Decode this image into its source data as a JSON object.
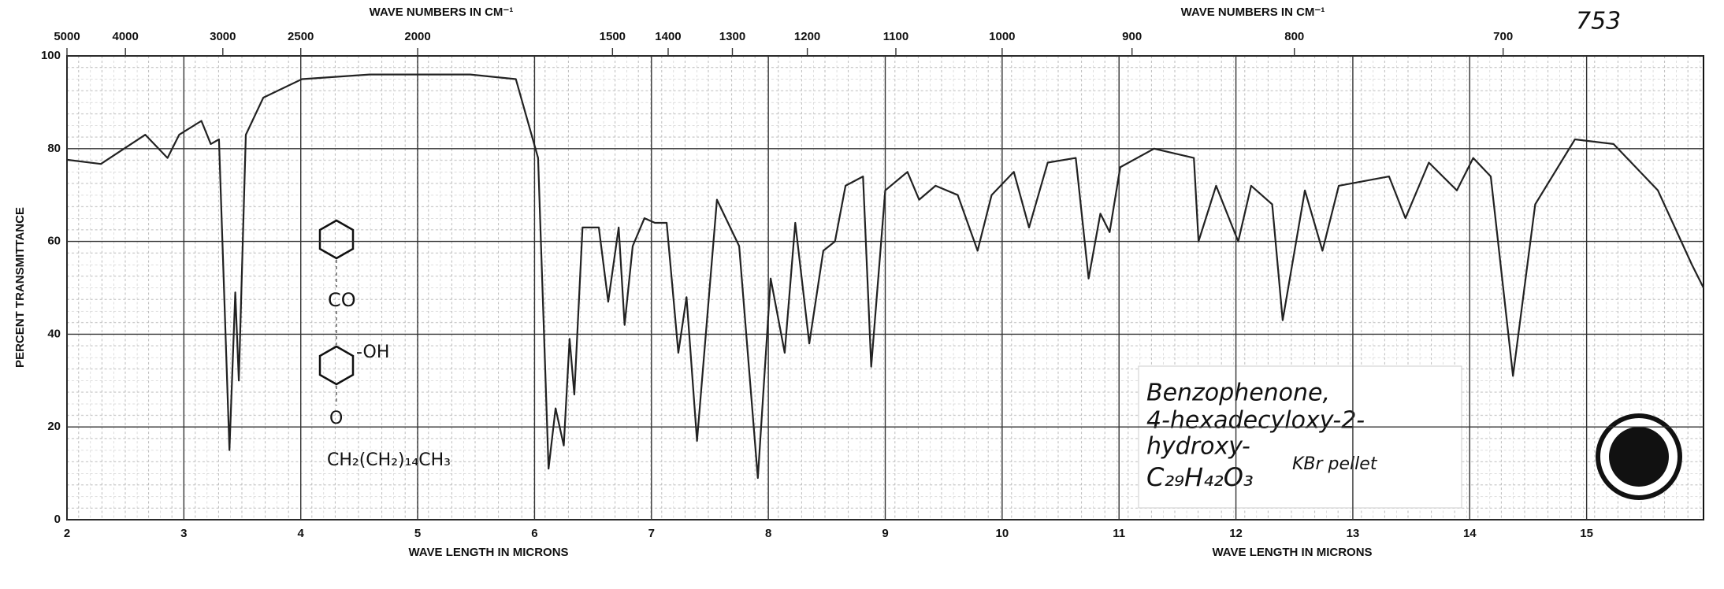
{
  "chart_data": {
    "type": "line",
    "x_label": "WAVE LENGTH IN MICRONS",
    "x2_label": "WAVE NUMBERS IN CM⁻¹",
    "y_label": "PERCENT TRANSMITTANCE",
    "xlim": [
      2,
      16
    ],
    "xticks": [
      2,
      3,
      4,
      5,
      6,
      7,
      8,
      9,
      10,
      11,
      12,
      13,
      14,
      15
    ],
    "x2ticks": [
      5000,
      4000,
      3000,
      2500,
      2000,
      1500,
      1400,
      1300,
      1200,
      1100,
      1000,
      900,
      800,
      700
    ],
    "ylim": [
      0,
      100
    ],
    "yticks": [
      0,
      20,
      40,
      60,
      80,
      100
    ],
    "grid": true,
    "color": "#222",
    "x": [
      2.0,
      2.29,
      2.67,
      2.86,
      2.96,
      3.15,
      3.23,
      3.3,
      3.39,
      3.44,
      3.47,
      3.53,
      3.68,
      4.01,
      4.59,
      5.45,
      5.84,
      6.03,
      6.12,
      6.18,
      6.25,
      6.3,
      6.34,
      6.41,
      6.55,
      6.63,
      6.72,
      6.77,
      6.84,
      6.94,
      7.03,
      7.13,
      7.23,
      7.3,
      7.39,
      7.56,
      7.75,
      7.91,
      8.02,
      8.14,
      8.23,
      8.35,
      8.47,
      8.57,
      8.66,
      8.81,
      8.88,
      9.0,
      9.19,
      9.29,
      9.43,
      9.62,
      9.79,
      9.91,
      10.1,
      10.23,
      10.39,
      10.63,
      10.74,
      10.84,
      10.92,
      11.01,
      11.3,
      11.64,
      11.68,
      11.83,
      12.02,
      12.13,
      12.31,
      12.4,
      12.59,
      12.74,
      12.88,
      13.31,
      13.45,
      13.65,
      13.89,
      14.03,
      14.18,
      14.37,
      14.56,
      14.9,
      15.23,
      15.61,
      15.9,
      16.0
    ],
    "values": [
      77.6,
      76.7,
      83,
      78,
      83,
      86,
      81,
      82,
      15,
      49,
      30,
      83,
      91,
      95,
      96,
      96,
      95,
      78,
      11,
      24,
      16,
      39,
      27,
      63,
      63,
      47,
      63,
      42,
      59,
      65,
      64,
      64,
      36,
      48,
      17,
      69,
      59,
      9,
      52,
      36,
      64,
      38,
      58,
      60,
      72,
      74,
      33,
      71,
      75,
      69,
      72,
      70,
      58,
      70,
      75,
      63,
      77,
      78,
      52,
      66,
      62,
      76,
      80,
      78,
      60,
      72,
      60,
      72,
      68,
      43,
      71,
      58,
      72,
      74,
      65,
      77,
      71,
      78,
      74,
      31,
      68,
      82,
      81,
      71,
      55,
      50
    ],
    "annotations": [
      "753",
      "Benzophenone,",
      "4-hexadecyloxy-2-",
      "hydroxy-",
      "C₂₉H₄₂O₃",
      "KBr pellet"
    ],
    "structure": [
      "CO",
      "-OH",
      "O",
      "CH₂(CH₂)₁₄CH₃"
    ]
  }
}
